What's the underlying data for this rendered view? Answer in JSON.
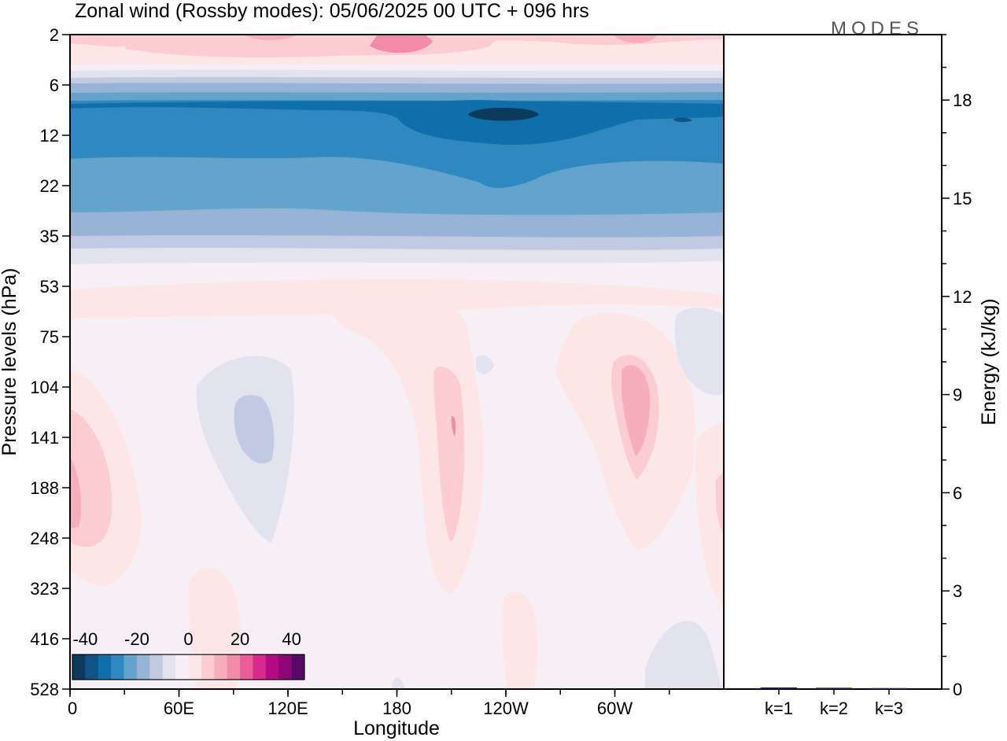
{
  "chart_data": {
    "type": "heatmap",
    "title": "Zonal wind (Rossby modes):  05/06/2025  00 UTC  + 096 hrs",
    "logo": "MODES",
    "xlabel": "Longitude",
    "ylabel": "Pressure levels (hPa)",
    "x_ticks": [
      "0",
      "60E",
      "120E",
      "180",
      "120W",
      "60W"
    ],
    "x_tick_values": [
      0,
      60,
      120,
      180,
      240,
      300
    ],
    "xlim": [
      0,
      360
    ],
    "y_ticks": [
      "2",
      "6",
      "12",
      "22",
      "35",
      "53",
      "75",
      "104",
      "141",
      "188",
      "248",
      "323",
      "416",
      "528"
    ],
    "y_scale": "model levels (top 2 hPa, bottom 528 hPa)",
    "colorbar": {
      "ticks": [
        "-40",
        "-20",
        "0",
        "20",
        "40"
      ],
      "tick_values": [
        -40,
        -20,
        0,
        20,
        40
      ],
      "range": [
        -45,
        45
      ],
      "step": 5,
      "colors": [
        "#0b3a5c",
        "#0d5587",
        "#0f6fab",
        "#3088c0",
        "#64a4cc",
        "#97b4d6",
        "#c2c9e2",
        "#e3e3f0",
        "#f6f0f6",
        "#fde6e6",
        "#fbcdd1",
        "#f7aebb",
        "#f28aa8",
        "#e95e98",
        "#d42b8c",
        "#b30b80",
        "#8a0679",
        "#5a0868"
      ]
    },
    "field_description": "Zonal wind (m/s) vs longitude and pressure level",
    "features": [
      {
        "kind": "easterly band",
        "levels": "6-35 hPa",
        "max_speed": -35,
        "core": "near 120W at 9-12 hPa"
      },
      {
        "kind": "weak westerly",
        "levels": "2-5 hPa",
        "max_speed": 20
      },
      {
        "kind": "westerly tongue",
        "lon": 175,
        "levels": "55-330 hPa",
        "max_speed": 15
      },
      {
        "kind": "westerly tongue",
        "lon": 290,
        "levels": "65-300 hPa",
        "max_speed": 10
      },
      {
        "kind": "easterly pocket",
        "lon": 100,
        "levels": "90-250 hPa",
        "max_speed": -10
      }
    ],
    "energy_panel": {
      "type": "bar",
      "ylabel": "Energy (kJ/kg)",
      "categories": [
        "k=1",
        "k=2",
        "k=3"
      ],
      "values": [
        0.05,
        0.04,
        0.03
      ],
      "ylim": [
        0,
        20
      ],
      "y_ticks": [
        "0",
        "3",
        "6",
        "9",
        "12",
        "15",
        "18"
      ],
      "y_tick_values": [
        0,
        3,
        6,
        9,
        12,
        15,
        18
      ],
      "bar_color": "#1a1a5e"
    }
  }
}
